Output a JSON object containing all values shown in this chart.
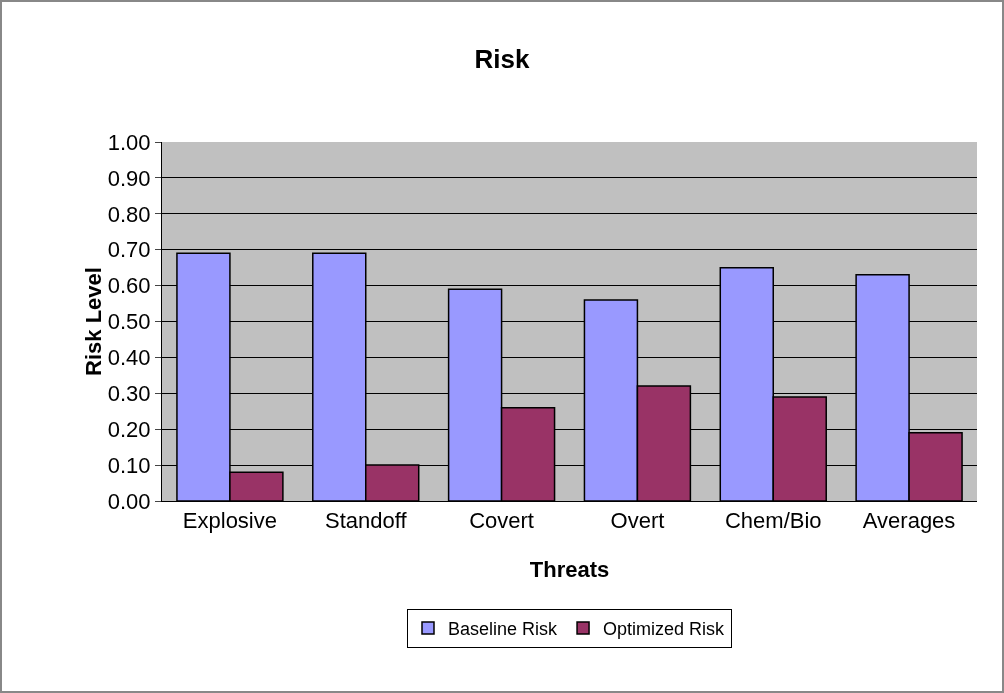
{
  "chart_data": {
    "type": "bar",
    "title": "Risk",
    "xlabel": "Threats",
    "ylabel": "Risk Level",
    "categories": [
      "Explosive",
      "Standoff",
      "Covert",
      "Overt",
      "Chem/Bio",
      "Averages"
    ],
    "series": [
      {
        "name": "Baseline Risk",
        "color": "#9999ff",
        "values": [
          0.69,
          0.69,
          0.59,
          0.56,
          0.65,
          0.63
        ]
      },
      {
        "name": "Optimized Risk",
        "color": "#993366",
        "values": [
          0.08,
          0.1,
          0.26,
          0.32,
          0.29,
          0.19
        ]
      }
    ],
    "ylim": [
      0,
      1
    ],
    "yticks": [
      {
        "value": 0,
        "label": "0.00"
      },
      {
        "value": 0.1,
        "label": "0.10"
      },
      {
        "value": 0.2,
        "label": "0.20"
      },
      {
        "value": 0.3,
        "label": "0.30"
      },
      {
        "value": 0.4,
        "label": "0.40"
      },
      {
        "value": 0.5,
        "label": "0.50"
      },
      {
        "value": 0.6,
        "label": "0.60"
      },
      {
        "value": 0.7,
        "label": "0.70"
      },
      {
        "value": 0.8,
        "label": "0.80"
      },
      {
        "value": 0.9,
        "label": "0.90"
      },
      {
        "value": 1,
        "label": "1.00"
      }
    ],
    "grid": "y",
    "legend": "bottom"
  }
}
